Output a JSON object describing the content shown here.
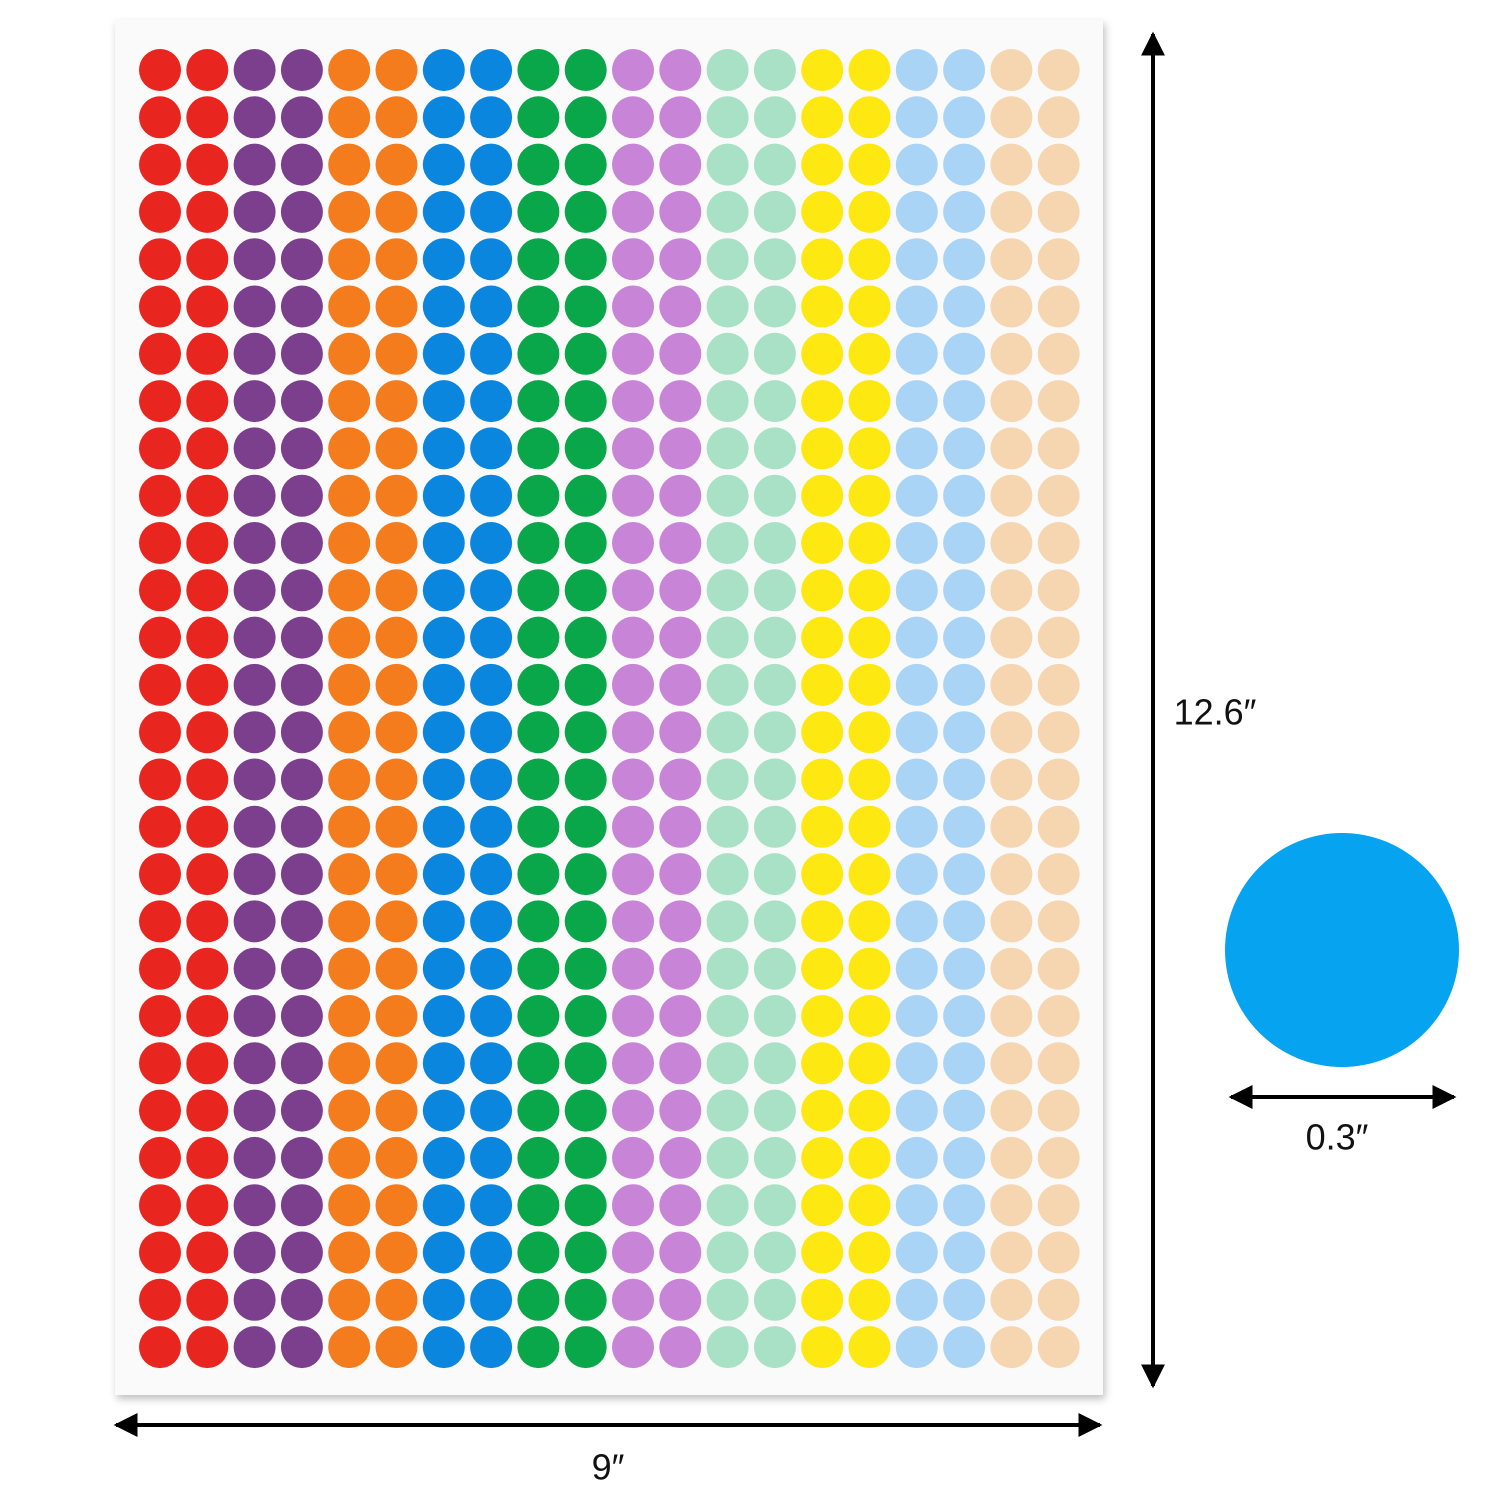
{
  "dimensions": {
    "height": "12.6″",
    "width": "9″",
    "dot_diameter": "0.3″"
  }
}
